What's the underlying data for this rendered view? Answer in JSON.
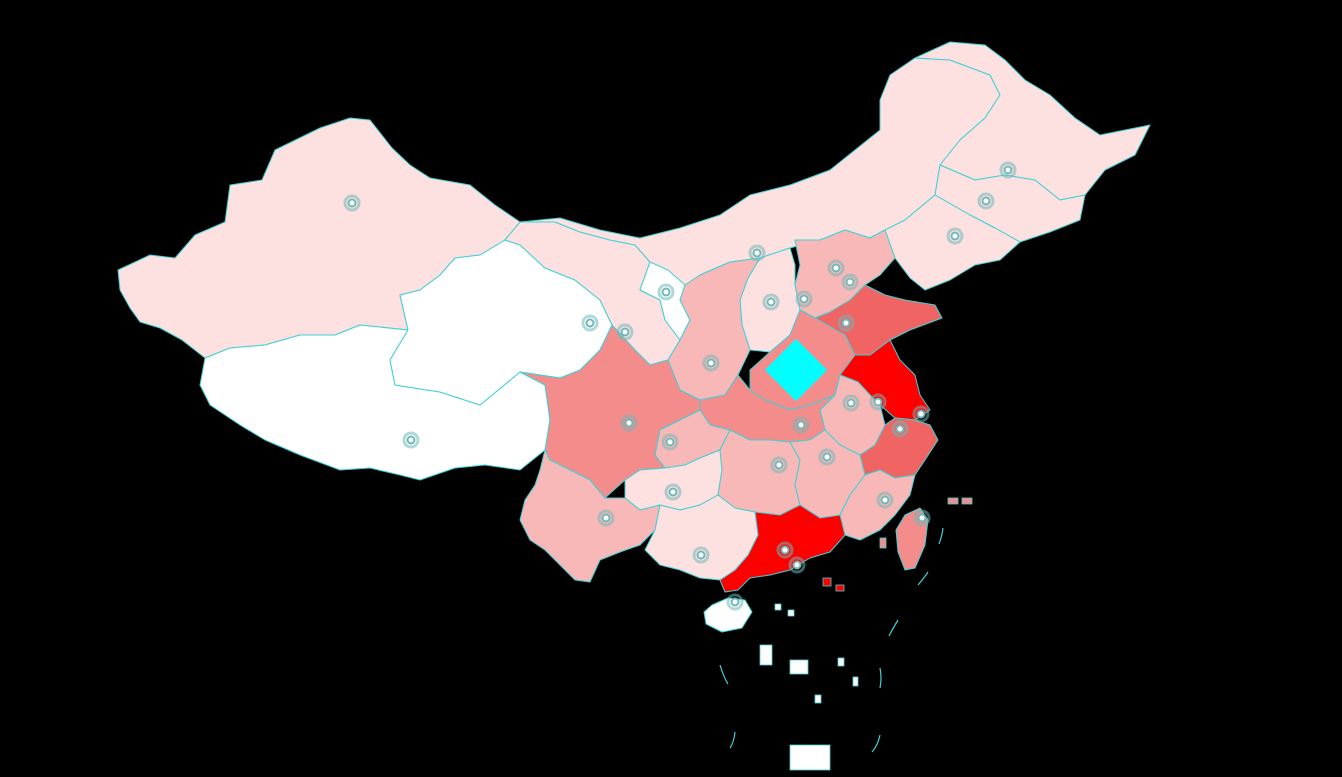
{
  "map": {
    "name": "china-province-choropleth",
    "colors": {
      "background": "#000000",
      "border": "#3fd0d6",
      "lowest": "#ffffff",
      "low": "#fde0e0",
      "mid": "#f9b8b8",
      "high": "#f48c8c",
      "higher": "#f06464",
      "highest": "#ff0000",
      "selected_marker": "#00ffff",
      "capital_marker": "#6fb8b8"
    },
    "selected_marker_icon": "diamond-icon",
    "capital_marker_icon": "ring-dot-icon"
  },
  "provinces": [
    {
      "id": "xinjiang",
      "level": "low"
    },
    {
      "id": "tibet",
      "level": "lowest"
    },
    {
      "id": "qinghai",
      "level": "lowest"
    },
    {
      "id": "gansu",
      "level": "low"
    },
    {
      "id": "inner-mongolia",
      "level": "low"
    },
    {
      "id": "heilongjiang",
      "level": "low"
    },
    {
      "id": "jilin",
      "level": "low"
    },
    {
      "id": "liaoning",
      "level": "low"
    },
    {
      "id": "hebei",
      "level": "mid"
    },
    {
      "id": "shanxi",
      "level": "low"
    },
    {
      "id": "shaanxi",
      "level": "mid"
    },
    {
      "id": "ningxia",
      "level": "lowest"
    },
    {
      "id": "henan",
      "level": "high"
    },
    {
      "id": "shandong",
      "level": "higher"
    },
    {
      "id": "jiangsu",
      "level": "highest"
    },
    {
      "id": "anhui",
      "level": "mid"
    },
    {
      "id": "hubei",
      "level": "high"
    },
    {
      "id": "sichuan",
      "level": "high"
    },
    {
      "id": "chongqing",
      "level": "mid"
    },
    {
      "id": "guizhou",
      "level": "low"
    },
    {
      "id": "yunnan",
      "level": "mid"
    },
    {
      "id": "hunan",
      "level": "mid"
    },
    {
      "id": "jiangxi",
      "level": "mid"
    },
    {
      "id": "zhejiang",
      "level": "higher"
    },
    {
      "id": "fujian",
      "level": "mid"
    },
    {
      "id": "guangdong",
      "level": "highest"
    },
    {
      "id": "guangxi",
      "level": "low"
    },
    {
      "id": "hainan",
      "level": "lowest"
    },
    {
      "id": "taiwan",
      "level": "high"
    }
  ],
  "capitals": [
    {
      "id": "urumqi"
    },
    {
      "id": "lhasa"
    },
    {
      "id": "xining"
    },
    {
      "id": "lanzhou"
    },
    {
      "id": "yinchuan"
    },
    {
      "id": "hohhot"
    },
    {
      "id": "harbin"
    },
    {
      "id": "changchun"
    },
    {
      "id": "shenyang"
    },
    {
      "id": "beijing"
    },
    {
      "id": "tianjin"
    },
    {
      "id": "shijiazhuang"
    },
    {
      "id": "taiyuan"
    },
    {
      "id": "xian"
    },
    {
      "id": "jinan"
    },
    {
      "id": "nanjing"
    },
    {
      "id": "shanghai"
    },
    {
      "id": "hefei"
    },
    {
      "id": "wuhan"
    },
    {
      "id": "chengdu"
    },
    {
      "id": "chongqing-city"
    },
    {
      "id": "guiyang"
    },
    {
      "id": "kunming"
    },
    {
      "id": "changsha"
    },
    {
      "id": "nanchang"
    },
    {
      "id": "hangzhou"
    },
    {
      "id": "fuzhou"
    },
    {
      "id": "guangzhou"
    },
    {
      "id": "hong-kong"
    },
    {
      "id": "nanning"
    },
    {
      "id": "haikou"
    },
    {
      "id": "taipei"
    }
  ]
}
